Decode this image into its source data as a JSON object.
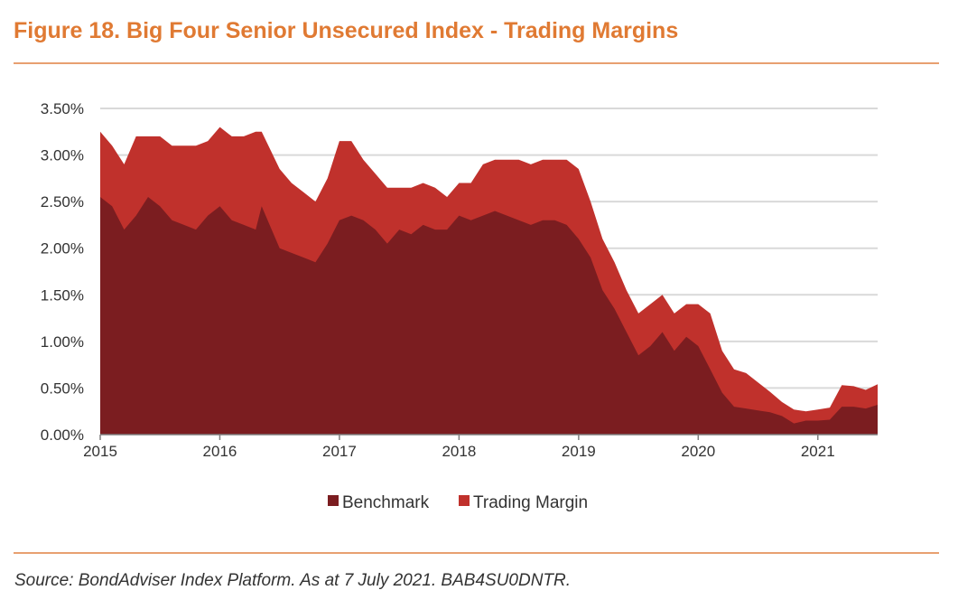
{
  "header": {
    "title": "Figure 18. Big Four Senior Unsecured Index - Trading Margins"
  },
  "footer": {
    "source": "Source: BondAdviser Index Platform. As at 7 July 2021. BAB4SU0DNTR."
  },
  "chart_data": {
    "type": "area",
    "stacked": true,
    "title": "Figure 18. Big Four Senior Unsecured Index - Trading Margins",
    "xlabel": "",
    "ylabel": "",
    "xlim": [
      2015.0,
      2021.5
    ],
    "ylim": [
      0,
      3.5
    ],
    "y_ticks": [
      0.0,
      0.5,
      1.0,
      1.5,
      2.0,
      2.5,
      3.0,
      3.5
    ],
    "y_tick_labels": [
      "0.00%",
      "0.50%",
      "1.00%",
      "1.50%",
      "2.00%",
      "2.50%",
      "3.00%",
      "3.50%"
    ],
    "x_ticks": [
      2015,
      2016,
      2017,
      2018,
      2019,
      2020,
      2021
    ],
    "x_tick_labels": [
      "2015",
      "2016",
      "2017",
      "2018",
      "2019",
      "2020",
      "2021"
    ],
    "grid": true,
    "legend_position": "bottom-center",
    "colors": {
      "benchmark": "#7b1d20",
      "trading_margin": "#c0312c",
      "grid": "#d9d9d9",
      "axis": "#7f7f7f"
    },
    "series": [
      {
        "name": "Benchmark",
        "x": [
          2015.0,
          2015.1,
          2015.2,
          2015.3,
          2015.4,
          2015.5,
          2015.6,
          2015.7,
          2015.8,
          2015.9,
          2016.0,
          2016.1,
          2016.2,
          2016.3,
          2016.35,
          2016.5,
          2016.6,
          2016.7,
          2016.8,
          2016.9,
          2017.0,
          2017.1,
          2017.2,
          2017.3,
          2017.4,
          2017.5,
          2017.6,
          2017.7,
          2017.8,
          2017.9,
          2018.0,
          2018.1,
          2018.2,
          2018.3,
          2018.4,
          2018.5,
          2018.6,
          2018.7,
          2018.8,
          2018.9,
          2019.0,
          2019.1,
          2019.2,
          2019.3,
          2019.4,
          2019.5,
          2019.6,
          2019.7,
          2019.8,
          2019.9,
          2020.0,
          2020.1,
          2020.2,
          2020.3,
          2020.4,
          2020.5,
          2020.6,
          2020.7,
          2020.8,
          2020.9,
          2021.0,
          2021.1,
          2021.2,
          2021.3,
          2021.4,
          2021.5
        ],
        "values": [
          2.55,
          2.45,
          2.2,
          2.35,
          2.55,
          2.45,
          2.3,
          2.25,
          2.2,
          2.35,
          2.45,
          2.3,
          2.25,
          2.2,
          2.45,
          2.0,
          1.95,
          1.9,
          1.85,
          2.05,
          2.3,
          2.35,
          2.3,
          2.2,
          2.05,
          2.2,
          2.15,
          2.25,
          2.2,
          2.2,
          2.35,
          2.3,
          2.35,
          2.4,
          2.35,
          2.3,
          2.25,
          2.3,
          2.3,
          2.25,
          2.1,
          1.9,
          1.55,
          1.35,
          1.1,
          0.85,
          0.95,
          1.1,
          0.9,
          1.05,
          0.95,
          0.7,
          0.45,
          0.3,
          0.28,
          0.26,
          0.24,
          0.2,
          0.12,
          0.15,
          0.15,
          0.16,
          0.3,
          0.3,
          0.28,
          0.32
        ]
      },
      {
        "name": "Trading Margin",
        "x": [
          2015.0,
          2015.1,
          2015.2,
          2015.3,
          2015.4,
          2015.5,
          2015.6,
          2015.7,
          2015.8,
          2015.9,
          2016.0,
          2016.1,
          2016.2,
          2016.3,
          2016.35,
          2016.5,
          2016.6,
          2016.7,
          2016.8,
          2016.9,
          2017.0,
          2017.1,
          2017.2,
          2017.3,
          2017.4,
          2017.5,
          2017.6,
          2017.7,
          2017.8,
          2017.9,
          2018.0,
          2018.1,
          2018.2,
          2018.3,
          2018.4,
          2018.5,
          2018.6,
          2018.7,
          2018.8,
          2018.9,
          2019.0,
          2019.1,
          2019.2,
          2019.3,
          2019.4,
          2019.5,
          2019.6,
          2019.7,
          2019.8,
          2019.9,
          2020.0,
          2020.1,
          2020.2,
          2020.3,
          2020.4,
          2020.5,
          2020.6,
          2020.7,
          2020.8,
          2020.9,
          2021.0,
          2021.1,
          2021.2,
          2021.3,
          2021.4,
          2021.5
        ],
        "values": [
          0.7,
          0.65,
          0.7,
          0.85,
          0.65,
          0.75,
          0.8,
          0.85,
          0.9,
          0.8,
          0.85,
          0.9,
          0.95,
          1.05,
          0.8,
          0.85,
          0.75,
          0.7,
          0.65,
          0.7,
          0.85,
          0.8,
          0.65,
          0.6,
          0.6,
          0.45,
          0.5,
          0.45,
          0.45,
          0.35,
          0.35,
          0.4,
          0.55,
          0.55,
          0.6,
          0.65,
          0.65,
          0.65,
          0.65,
          0.7,
          0.75,
          0.6,
          0.55,
          0.5,
          0.45,
          0.45,
          0.45,
          0.4,
          0.4,
          0.35,
          0.45,
          0.6,
          0.45,
          0.4,
          0.38,
          0.3,
          0.22,
          0.15,
          0.15,
          0.1,
          0.12,
          0.13,
          0.23,
          0.22,
          0.2,
          0.22
        ]
      }
    ]
  }
}
